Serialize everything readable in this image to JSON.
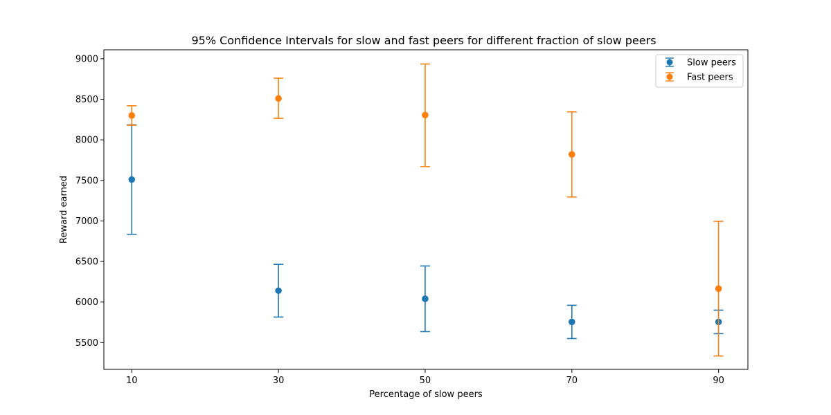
{
  "chart_data": {
    "type": "errorbar",
    "title": "95% Confidence Intervals for slow and fast peers for different fraction of slow peers",
    "xlabel": "Percentage of slow peers",
    "ylabel": "Reward earned",
    "categories": [
      "10",
      "30",
      "50",
      "70",
      "90"
    ],
    "x": [
      10,
      30,
      50,
      70,
      90
    ],
    "xlim": [
      6.2,
      94
    ],
    "ylim": [
      5170,
      9110
    ],
    "yticks": [
      5500,
      6000,
      6500,
      7000,
      7500,
      8000,
      8500,
      9000
    ],
    "legend_position": "top-right",
    "series": [
      {
        "name": "Slow peers",
        "color": "#1f77b4",
        "values": [
          7510,
          6140,
          6040,
          5755,
          5755
        ],
        "lower": [
          6835,
          5815,
          5635,
          5550,
          5610
        ],
        "upper": [
          8185,
          6465,
          6445,
          5960,
          5900
        ]
      },
      {
        "name": "Fast peers",
        "color": "#ff7f0e",
        "values": [
          8300,
          8510,
          8305,
          7820,
          6165
        ],
        "lower": [
          8180,
          8265,
          7670,
          7295,
          5335
        ],
        "upper": [
          8420,
          8760,
          8935,
          8345,
          6995
        ]
      }
    ]
  }
}
